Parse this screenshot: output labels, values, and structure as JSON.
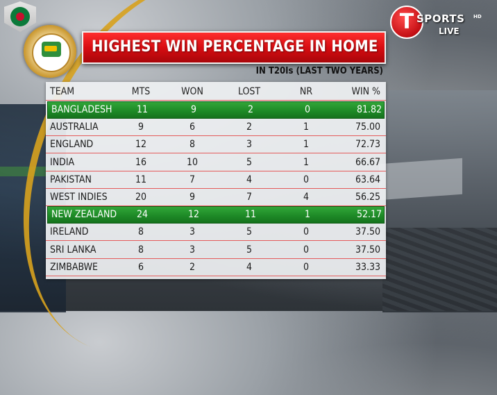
{
  "title": "HIGHEST WIN PERCENTAGE IN HOME",
  "subtitle": "IN T20Is (LAST TWO YEARS)",
  "broadcaster": {
    "logo_letter": "T",
    "brand": "SPORTS",
    "hd": "HD",
    "live": "LIVE"
  },
  "colors": {
    "banner_red": "#d80d12",
    "highlight_green": "#1e8a27",
    "row_divider": "#e45a5a",
    "arc_gold": "#d8a21e"
  },
  "table": {
    "headers": [
      "TEAM",
      "MTS",
      "WON",
      "LOST",
      "NR",
      "WIN %"
    ],
    "rows": [
      {
        "team": "BANGLADESH",
        "mts": "11",
        "won": "9",
        "lost": "2",
        "nr": "0",
        "win": "81.82",
        "highlight": true
      },
      {
        "team": "AUSTRALIA",
        "mts": "9",
        "won": "6",
        "lost": "2",
        "nr": "1",
        "win": "75.00",
        "highlight": false
      },
      {
        "team": "ENGLAND",
        "mts": "12",
        "won": "8",
        "lost": "3",
        "nr": "1",
        "win": "72.73",
        "highlight": false
      },
      {
        "team": "INDIA",
        "mts": "16",
        "won": "10",
        "lost": "5",
        "nr": "1",
        "win": "66.67",
        "highlight": false
      },
      {
        "team": "PAKISTAN",
        "mts": "11",
        "won": "7",
        "lost": "4",
        "nr": "0",
        "win": "63.64",
        "highlight": false
      },
      {
        "team": "WEST INDIES",
        "mts": "20",
        "won": "9",
        "lost": "7",
        "nr": "4",
        "win": "56.25",
        "highlight": false
      },
      {
        "team": "NEW ZEALAND",
        "mts": "24",
        "won": "12",
        "lost": "11",
        "nr": "1",
        "win": "52.17",
        "highlight": true
      },
      {
        "team": "IRELAND",
        "mts": "8",
        "won": "3",
        "lost": "5",
        "nr": "0",
        "win": "37.50",
        "highlight": false
      },
      {
        "team": "SRI LANKA",
        "mts": "8",
        "won": "3",
        "lost": "5",
        "nr": "0",
        "win": "37.50",
        "highlight": false
      },
      {
        "team": "ZIMBABWE",
        "mts": "6",
        "won": "2",
        "lost": "4",
        "nr": "0",
        "win": "33.33",
        "highlight": false
      }
    ]
  }
}
